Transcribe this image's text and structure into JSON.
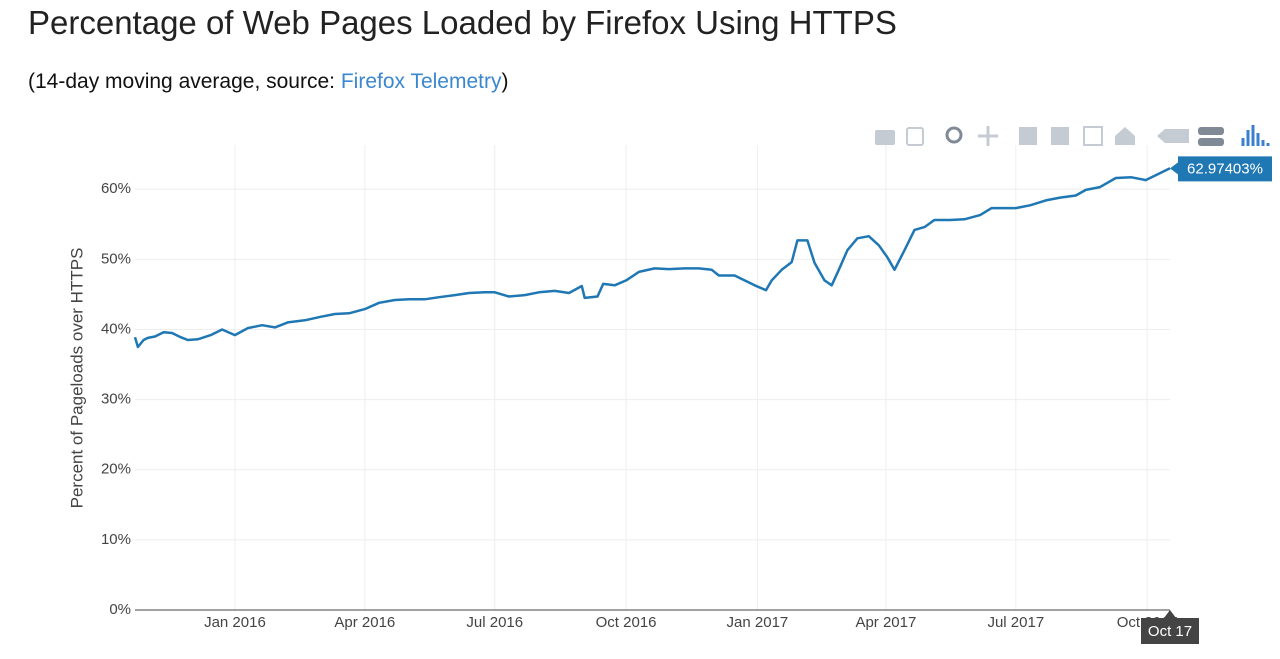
{
  "chart_data": {
    "type": "line",
    "title": "Percentage of Web Pages Loaded by Firefox Using HTTPS",
    "subtitle_prefix": "(14-day moving average, source: ",
    "subtitle_link": "Firefox Telemetry",
    "subtitle_suffix": ")",
    "ylabel": "Percent of Pageloads over HTTPS",
    "x": [
      "2015-10-23",
      "2015-10-25",
      "2015-10-29",
      "2015-11-01",
      "2015-11-06",
      "2015-11-12",
      "2015-11-18",
      "2015-11-24",
      "2015-11-29",
      "2015-12-06",
      "2015-12-15",
      "2015-12-23",
      "2016-01-01",
      "2016-01-10",
      "2016-01-20",
      "2016-01-29",
      "2016-02-07",
      "2016-02-19",
      "2016-03-01",
      "2016-03-11",
      "2016-03-21",
      "2016-04-01",
      "2016-04-11",
      "2016-04-22",
      "2016-05-02",
      "2016-05-13",
      "2016-05-23",
      "2016-06-03",
      "2016-06-13",
      "2016-06-24",
      "2016-07-01",
      "2016-07-11",
      "2016-07-22",
      "2016-08-01",
      "2016-08-12",
      "2016-08-22",
      "2016-08-31",
      "2016-09-02",
      "2016-09-11",
      "2016-09-15",
      "2016-09-23",
      "2016-10-01",
      "2016-10-10",
      "2016-10-21",
      "2016-10-31",
      "2016-11-11",
      "2016-11-21",
      "2016-11-30",
      "2016-12-05",
      "2016-12-16",
      "2016-12-23",
      "2016-12-30",
      "2017-01-07",
      "2017-01-11",
      "2017-01-18",
      "2017-01-25",
      "2017-01-29",
      "2017-02-05",
      "2017-02-10",
      "2017-02-17",
      "2017-02-22",
      "2017-02-27",
      "2017-03-05",
      "2017-03-12",
      "2017-03-20",
      "2017-03-27",
      "2017-04-02",
      "2017-04-07",
      "2017-04-14",
      "2017-04-21",
      "2017-04-28",
      "2017-05-05",
      "2017-05-16",
      "2017-05-26",
      "2017-06-06",
      "2017-06-14",
      "2017-07-01",
      "2017-07-11",
      "2017-07-22",
      "2017-08-01",
      "2017-08-12",
      "2017-08-19",
      "2017-08-29",
      "2017-09-09",
      "2017-09-20",
      "2017-09-30",
      "2017-10-07",
      "2017-10-17"
    ],
    "series": [
      {
        "name": "HTTPS",
        "color": "#1f77b4",
        "values": [
          38.9,
          37.5,
          38.5,
          38.8,
          39.0,
          39.6,
          39.5,
          38.9,
          38.5,
          38.6,
          39.2,
          40.0,
          39.2,
          40.2,
          40.6,
          40.3,
          41.0,
          41.3,
          41.8,
          42.2,
          42.3,
          42.9,
          43.8,
          44.2,
          44.3,
          44.3,
          44.6,
          44.9,
          45.2,
          45.3,
          45.3,
          44.7,
          44.9,
          45.3,
          45.5,
          45.2,
          46.2,
          44.5,
          44.7,
          46.5,
          46.3,
          47.0,
          48.2,
          48.7,
          48.6,
          48.7,
          48.7,
          48.5,
          47.7,
          47.7,
          47.0,
          46.3,
          45.6,
          47.0,
          48.5,
          49.6,
          52.7,
          52.7,
          49.5,
          47.0,
          46.3,
          48.5,
          51.3,
          53.0,
          53.3,
          52.0,
          50.3,
          48.5,
          51.3,
          54.2,
          54.6,
          55.6,
          55.6,
          55.7,
          56.3,
          57.3,
          57.3,
          57.7,
          58.4,
          58.8,
          59.1,
          59.9,
          60.3,
          61.6,
          61.7,
          61.3,
          62.0,
          62.97403
        ]
      }
    ],
    "xlim": [
      "2015-10-23",
      "2017-10-17"
    ],
    "xticks": [
      {
        "value": "2016-01-01",
        "label": "Jan 2016"
      },
      {
        "value": "2016-04-01",
        "label": "Apr 2016"
      },
      {
        "value": "2016-07-01",
        "label": "Jul 2016"
      },
      {
        "value": "2016-10-01",
        "label": "Oct 2016"
      },
      {
        "value": "2017-01-01",
        "label": "Jan 2017"
      },
      {
        "value": "2017-04-01",
        "label": "Apr 2017"
      },
      {
        "value": "2017-07-01",
        "label": "Jul 2017"
      },
      {
        "value": "2017-10-01",
        "label": "Oct 2017"
      }
    ],
    "ylim": [
      0,
      66.3
    ],
    "yticks": [
      {
        "value": 0,
        "label": "0%"
      },
      {
        "value": 10,
        "label": "10%"
      },
      {
        "value": 20,
        "label": "20%"
      },
      {
        "value": 30,
        "label": "30%"
      },
      {
        "value": 40,
        "label": "40%"
      },
      {
        "value": 50,
        "label": "50%"
      },
      {
        "value": 60,
        "label": "60%"
      }
    ],
    "grid": true,
    "hover": {
      "x_label": "Oct 17",
      "y_label": "62.97403%"
    }
  }
}
